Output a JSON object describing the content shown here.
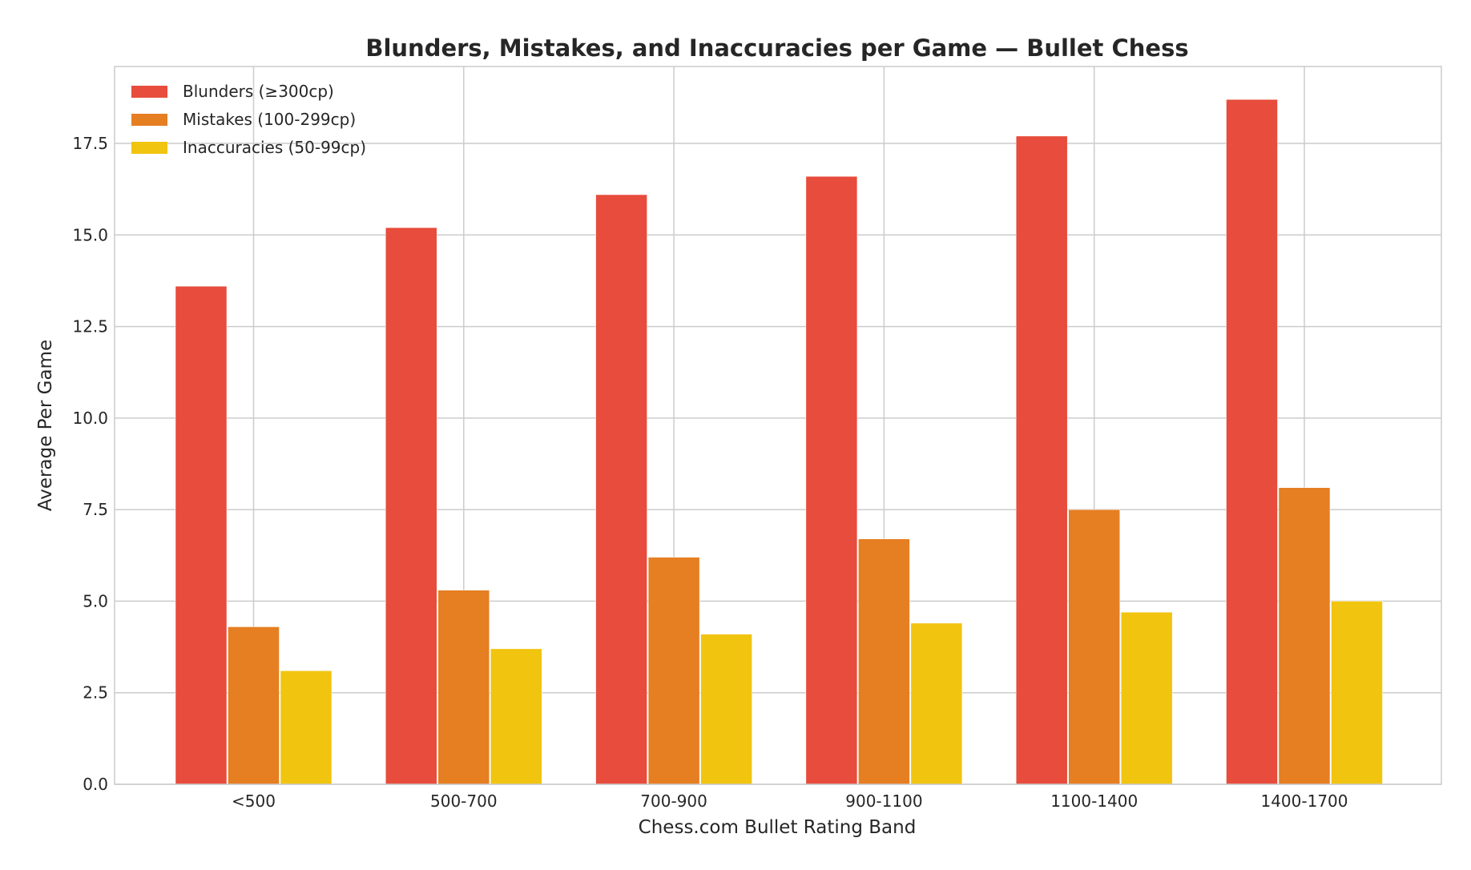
{
  "chart_data": {
    "type": "bar",
    "title": "Blunders, Mistakes, and Inaccuracies per Game — Bullet Chess",
    "xlabel": "Chess.com Bullet Rating Band",
    "ylabel": "Average Per Game",
    "categories": [
      "<500",
      "500-700",
      "700-900",
      "900-1100",
      "1100-1400",
      "1400-1700"
    ],
    "series": [
      {
        "name": "Blunders (≥300cp)",
        "color": "#e74c3c",
        "values": [
          13.6,
          15.2,
          16.1,
          16.6,
          17.7,
          18.7
        ]
      },
      {
        "name": "Mistakes (100-299cp)",
        "color": "#e67e22",
        "values": [
          4.3,
          5.3,
          6.2,
          6.7,
          7.5,
          8.1
        ]
      },
      {
        "name": "Inaccuracies (50-99cp)",
        "color": "#f1c40f",
        "values": [
          3.1,
          3.7,
          4.1,
          4.4,
          4.7,
          5.0
        ]
      }
    ],
    "ylim": [
      0,
      19.6
    ],
    "yticks": [
      0.0,
      2.5,
      5.0,
      7.5,
      10.0,
      12.5,
      15.0,
      17.5
    ],
    "ytick_labels": [
      "0.0",
      "2.5",
      "5.0",
      "7.5",
      "10.0",
      "12.5",
      "15.0",
      "17.5"
    ],
    "grid": true,
    "legend_position": "top-left"
  }
}
